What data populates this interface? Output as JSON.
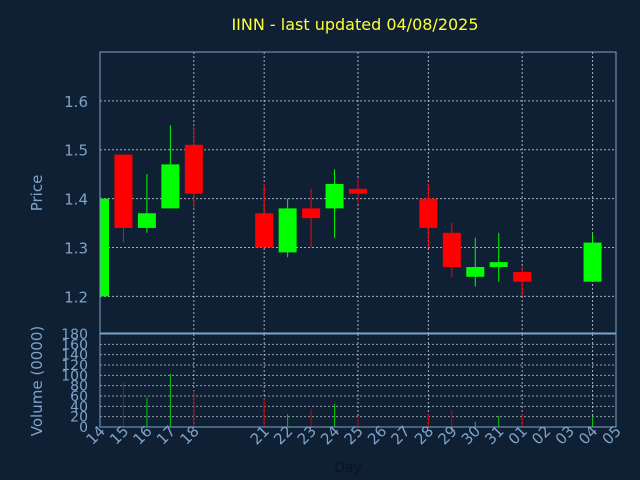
{
  "chart_title": "IINN - last updated 04/08/2025",
  "colors": {
    "background": "#0f2035",
    "frame": "#7fa3c8",
    "grid": "#c8d2dc",
    "title": "#ffff33",
    "up": "#00ff00",
    "down": "#ff0000",
    "volume_up": "#00cc00",
    "volume_down": "#cc0000"
  },
  "chart_data": {
    "type": "candlestick",
    "title": "IINN - last updated 04/08/2025",
    "xlabel": "Day",
    "price_panel": {
      "ylabel": "Price",
      "ylim": [
        1.125,
        1.7
      ],
      "yticks": [
        1.2,
        1.3,
        1.4,
        1.5,
        1.6
      ],
      "ytick_labels": [
        "1.2",
        "1.3",
        "1.4",
        "1.5",
        "1.6"
      ]
    },
    "volume_panel": {
      "ylabel": "Volume (0000)",
      "ylim": [
        0,
        180
      ],
      "yticks": [
        0,
        20,
        40,
        60,
        80,
        100,
        120,
        140,
        160,
        180
      ],
      "ytick_labels": [
        "0",
        "20",
        "40",
        "60",
        "80",
        "100",
        "120",
        "140",
        "160",
        "180"
      ]
    },
    "x_tick_labels": [
      "14",
      "15",
      "16",
      "17",
      "18",
      "21",
      "22",
      "23",
      "24",
      "25",
      "26",
      "27",
      "28",
      "29",
      "30",
      "31",
      "01",
      "02",
      "03",
      "04",
      "05"
    ],
    "x_tick_sessions": [
      0,
      1,
      2,
      3,
      4,
      7,
      8,
      9,
      10,
      11,
      12,
      13,
      14,
      15,
      16,
      17,
      18,
      19,
      20,
      21,
      22
    ],
    "vertical_gridlines_at": [
      4,
      7,
      11,
      14,
      18,
      21
    ],
    "session_range": [
      0,
      22
    ],
    "candles": [
      {
        "day": "14",
        "session": 0,
        "open": 1.2,
        "high": 1.4,
        "low": 1.2,
        "close": 1.4,
        "volume": 0
      },
      {
        "day": "15",
        "session": 1,
        "open": 1.49,
        "high": 1.49,
        "low": 1.31,
        "close": 1.34,
        "volume": 87
      },
      {
        "day": "16",
        "session": 2,
        "open": 1.34,
        "high": 1.45,
        "low": 1.33,
        "close": 1.37,
        "volume": 57
      },
      {
        "day": "17",
        "session": 3,
        "open": 1.38,
        "high": 1.55,
        "low": 1.38,
        "close": 1.47,
        "volume": 103
      },
      {
        "day": "18",
        "session": 4,
        "open": 1.51,
        "high": 1.55,
        "low": 1.38,
        "close": 1.41,
        "volume": 70
      },
      {
        "day": "21",
        "session": 7,
        "open": 1.37,
        "high": 1.43,
        "low": 1.3,
        "close": 1.3,
        "volume": 55
      },
      {
        "day": "22",
        "session": 8,
        "open": 1.29,
        "high": 1.4,
        "low": 1.28,
        "close": 1.38,
        "volume": 25
      },
      {
        "day": "23",
        "session": 9,
        "open": 1.38,
        "high": 1.42,
        "low": 1.3,
        "close": 1.36,
        "volume": 35
      },
      {
        "day": "24",
        "session": 10,
        "open": 1.38,
        "high": 1.46,
        "low": 1.32,
        "close": 1.43,
        "volume": 45
      },
      {
        "day": "25",
        "session": 11,
        "open": 1.42,
        "high": 1.44,
        "low": 1.39,
        "close": 1.41,
        "volume": 20
      },
      {
        "day": "28",
        "session": 14,
        "open": 1.4,
        "high": 1.43,
        "low": 1.3,
        "close": 1.34,
        "volume": 25
      },
      {
        "day": "29",
        "session": 15,
        "open": 1.33,
        "high": 1.35,
        "low": 1.24,
        "close": 1.26,
        "volume": 32
      },
      {
        "day": "30",
        "session": 16,
        "open": 1.24,
        "high": 1.32,
        "low": 1.22,
        "close": 1.26,
        "volume": 10
      },
      {
        "day": "31",
        "session": 17,
        "open": 1.26,
        "high": 1.33,
        "low": 1.23,
        "close": 1.27,
        "volume": 22
      },
      {
        "day": "01",
        "session": 18,
        "open": 1.25,
        "high": 1.26,
        "low": 1.2,
        "close": 1.23,
        "volume": 25
      },
      {
        "day": "04",
        "session": 21,
        "open": 1.23,
        "high": 1.33,
        "low": 1.23,
        "close": 1.31,
        "volume": 20
      }
    ]
  }
}
